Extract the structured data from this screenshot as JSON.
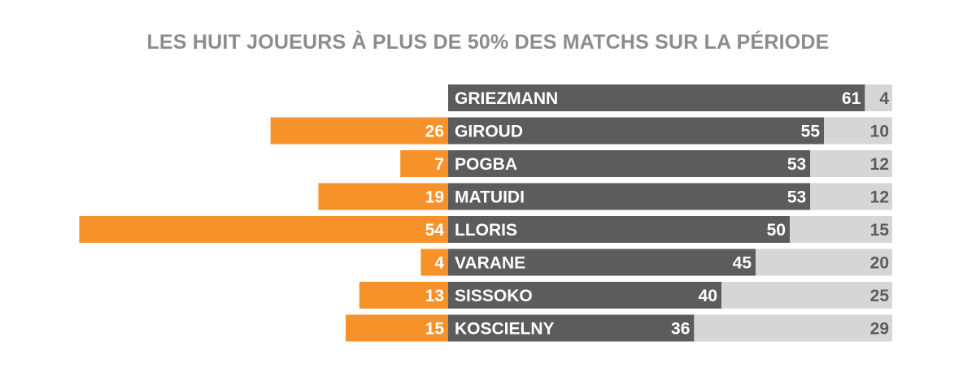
{
  "chart_data": {
    "type": "bar",
    "title": "LES HUIT JOUEURS À PLUS DE 50% DES MATCHS SUR LA PÉRIODE",
    "categories": [
      "GRIEZMANN",
      "GIROUD",
      "POGBA",
      "MATUIDI",
      "LLORIS",
      "VARANE",
      "SISSOKO",
      "KOSCIELNY"
    ],
    "series": [
      {
        "values": [
          null,
          26,
          7,
          19,
          54,
          4,
          13,
          15
        ],
        "direction": "left"
      },
      {
        "values": [
          61,
          55,
          53,
          53,
          50,
          45,
          40,
          36
        ],
        "direction": "right"
      },
      {
        "values": [
          4,
          10,
          12,
          12,
          15,
          20,
          25,
          29
        ],
        "direction": "right",
        "stacked": true
      }
    ],
    "legend": "none",
    "grid": false
  },
  "colors": {
    "left": "#f7922a",
    "main": "#5c5c5c",
    "rest": "#d6d6d6",
    "label_light": "#ffffff",
    "label_dark": "#5c5c5c",
    "title": "#8c8c8c"
  }
}
